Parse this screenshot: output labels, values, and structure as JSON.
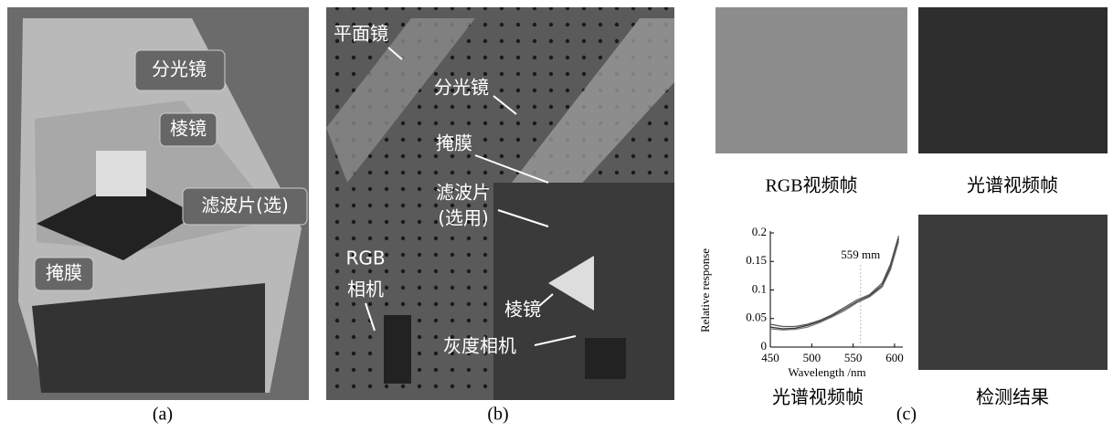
{
  "panels": [
    {
      "caption": "(a)",
      "labels": [
        "分光镜",
        "棱镜",
        "滤波片(选)",
        "掩膜"
      ]
    },
    {
      "caption": "(b)",
      "labels": [
        "平面镜",
        "分光镜",
        "掩膜",
        "滤波片",
        "(选用)",
        "RGB",
        "相机",
        "棱镜",
        "灰度相机"
      ]
    },
    {
      "caption": "(c)",
      "images": [
        "RGB视频帧",
        "光谱视频帧",
        "检测结果"
      ]
    }
  ],
  "chart_data": {
    "type": "line",
    "title": "光谱视频帧",
    "xlabel": "Wavelength /nm",
    "ylabel": "Relative response",
    "annotation": {
      "x": 559,
      "label": "559 mm"
    },
    "x": [
      450,
      465,
      480,
      495,
      510,
      525,
      540,
      555,
      570,
      585,
      595,
      605
    ],
    "series": [
      {
        "color": "#333333",
        "values": [
          0.035,
          0.032,
          0.033,
          0.038,
          0.045,
          0.055,
          0.067,
          0.08,
          0.09,
          0.108,
          0.14,
          0.19
        ]
      },
      {
        "color": "#555555",
        "values": [
          0.04,
          0.036,
          0.036,
          0.04,
          0.047,
          0.057,
          0.07,
          0.083,
          0.092,
          0.112,
          0.145,
          0.195
        ]
      },
      {
        "color": "#777777",
        "values": [
          0.032,
          0.03,
          0.031,
          0.035,
          0.043,
          0.053,
          0.064,
          0.078,
          0.088,
          0.105,
          0.135,
          0.185
        ]
      }
    ],
    "xlim": [
      450,
      610
    ],
    "ylim": [
      0,
      0.2
    ],
    "xticks": [
      450,
      500,
      550,
      600
    ],
    "yticks": [
      0,
      0.05,
      0.1,
      0.15,
      0.2
    ]
  }
}
